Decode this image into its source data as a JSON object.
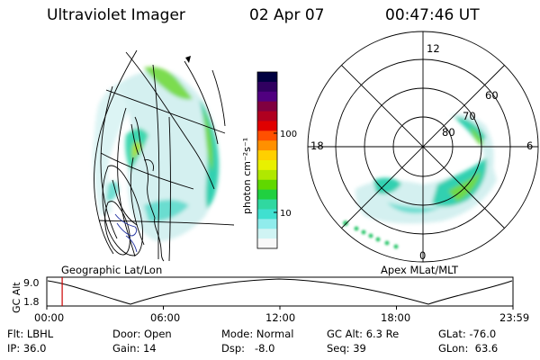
{
  "header": {
    "title": "Ultraviolet Imager",
    "date": "02 Apr 07",
    "time": "00:47:46 UT"
  },
  "colorbar": {
    "label": "photon cm⁻²s⁻¹",
    "ticks": [
      "100",
      "10"
    ],
    "colors": [
      "#000040",
      "#300060",
      "#500080",
      "#800040",
      "#b00020",
      "#e00000",
      "#ff5000",
      "#ff9000",
      "#ffd000",
      "#e8f000",
      "#b0e800",
      "#60d800",
      "#20d040",
      "#30d8a0",
      "#40e0d0",
      "#90ecec",
      "#d0f4f4",
      "#f8f8f8"
    ]
  },
  "geo_panel": {
    "label": "Geographic Lat/Lon"
  },
  "polar_panel": {
    "label": "Apex MLat/MLT",
    "mlt_labels": {
      "top": "12",
      "left": "18",
      "right": "6",
      "bottom": "0"
    },
    "lat_labels": [
      "60",
      "70",
      "80"
    ]
  },
  "altitude_strip": {
    "ylabel": "GC Alt",
    "y_ticks": [
      "9.0",
      "1.8"
    ],
    "x_ticks": [
      "00:00",
      "06:00",
      "12:00",
      "18:00",
      "23:59"
    ],
    "current_time_fraction": 0.033,
    "marker_color": "#cc0000"
  },
  "info": {
    "row1": [
      "Flt: LBHL",
      "Door: Open",
      "Mode: Normal",
      "GC Alt: 6.3 Re",
      "GLat: -76.0"
    ],
    "row2": [
      "IP: 36.0",
      "Gain: 14",
      "Dsp:   -8.0",
      "Seq: 39",
      "GLon:  63.6"
    ]
  }
}
